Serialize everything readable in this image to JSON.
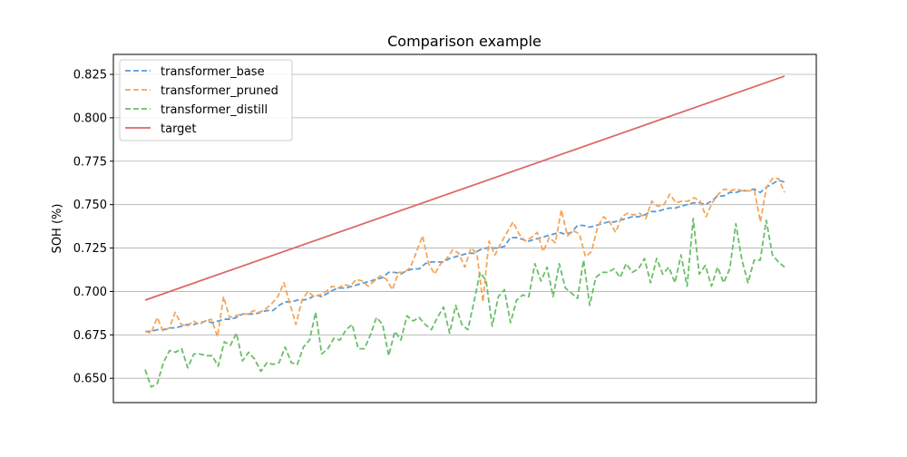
{
  "chart_data": {
    "type": "line",
    "title": "Comparison example",
    "xlabel": "",
    "ylabel": "SOH (%)",
    "ylim": [
      0.636,
      0.8365
    ],
    "y_ticks": [
      0.65,
      0.675,
      0.7,
      0.725,
      0.75,
      0.775,
      0.8,
      0.825
    ],
    "y_tick_labels": [
      "0.650",
      "0.675",
      "0.700",
      "0.725",
      "0.750",
      "0.775",
      "0.800",
      "0.825"
    ],
    "grid": "horizontal",
    "legend_position": "top-left",
    "series": [
      {
        "name": "transformer_base",
        "color": "#5b9bd5",
        "dash": true,
        "values": [
          0.677,
          0.677,
          0.678,
          0.678,
          0.679,
          0.679,
          0.68,
          0.681,
          0.681,
          0.682,
          0.683,
          0.682,
          0.683,
          0.684,
          0.684,
          0.685,
          0.687,
          0.687,
          0.687,
          0.688,
          0.689,
          0.689,
          0.692,
          0.694,
          0.694,
          0.695,
          0.695,
          0.696,
          0.698,
          0.697,
          0.699,
          0.701,
          0.702,
          0.702,
          0.703,
          0.704,
          0.705,
          0.706,
          0.707,
          0.708,
          0.711,
          0.711,
          0.71,
          0.712,
          0.713,
          0.713,
          0.716,
          0.717,
          0.717,
          0.717,
          0.719,
          0.72,
          0.721,
          0.722,
          0.722,
          0.724,
          0.725,
          0.725,
          0.725,
          0.726,
          0.731,
          0.731,
          0.73,
          0.729,
          0.73,
          0.731,
          0.732,
          0.733,
          0.734,
          0.733,
          0.734,
          0.738,
          0.738,
          0.737,
          0.738,
          0.739,
          0.74,
          0.74,
          0.741,
          0.742,
          0.743,
          0.743,
          0.744,
          0.746,
          0.746,
          0.747,
          0.748,
          0.748,
          0.749,
          0.75,
          0.751,
          0.751,
          0.75,
          0.752,
          0.755,
          0.755,
          0.757,
          0.757,
          0.758,
          0.758,
          0.759,
          0.757,
          0.76,
          0.762,
          0.764,
          0.763
        ]
      },
      {
        "name": "transformer_pruned",
        "color": "#f5a55a",
        "dash": true,
        "values": [
          0.677,
          0.676,
          0.685,
          0.677,
          0.679,
          0.688,
          0.681,
          0.68,
          0.683,
          0.681,
          0.683,
          0.684,
          0.674,
          0.697,
          0.685,
          0.686,
          0.687,
          0.687,
          0.689,
          0.688,
          0.69,
          0.693,
          0.697,
          0.705,
          0.693,
          0.681,
          0.695,
          0.7,
          0.697,
          0.698,
          0.7,
          0.703,
          0.702,
          0.704,
          0.703,
          0.707,
          0.706,
          0.703,
          0.706,
          0.709,
          0.707,
          0.701,
          0.711,
          0.711,
          0.714,
          0.723,
          0.732,
          0.716,
          0.71,
          0.716,
          0.719,
          0.724,
          0.722,
          0.714,
          0.725,
          0.722,
          0.694,
          0.729,
          0.721,
          0.728,
          0.734,
          0.74,
          0.733,
          0.729,
          0.731,
          0.734,
          0.723,
          0.731,
          0.728,
          0.747,
          0.732,
          0.735,
          0.733,
          0.72,
          0.723,
          0.737,
          0.743,
          0.74,
          0.734,
          0.743,
          0.745,
          0.744,
          0.745,
          0.742,
          0.752,
          0.749,
          0.75,
          0.756,
          0.751,
          0.752,
          0.752,
          0.754,
          0.752,
          0.743,
          0.751,
          0.756,
          0.759,
          0.758,
          0.759,
          0.758,
          0.758,
          0.758,
          0.74,
          0.76,
          0.765,
          0.765,
          0.757
        ]
      },
      {
        "name": "transformer_distill",
        "color": "#6abf69",
        "dash": true,
        "values": [
          0.655,
          0.645,
          0.647,
          0.659,
          0.666,
          0.665,
          0.667,
          0.656,
          0.664,
          0.664,
          0.663,
          0.663,
          0.657,
          0.671,
          0.669,
          0.676,
          0.66,
          0.665,
          0.661,
          0.654,
          0.659,
          0.658,
          0.659,
          0.668,
          0.659,
          0.658,
          0.668,
          0.672,
          0.688,
          0.664,
          0.667,
          0.673,
          0.672,
          0.678,
          0.681,
          0.667,
          0.667,
          0.675,
          0.685,
          0.681,
          0.663,
          0.677,
          0.672,
          0.686,
          0.683,
          0.685,
          0.681,
          0.678,
          0.685,
          0.691,
          0.676,
          0.692,
          0.681,
          0.678,
          0.694,
          0.711,
          0.706,
          0.68,
          0.697,
          0.701,
          0.682,
          0.695,
          0.698,
          0.697,
          0.716,
          0.706,
          0.714,
          0.697,
          0.716,
          0.702,
          0.699,
          0.696,
          0.718,
          0.692,
          0.708,
          0.711,
          0.711,
          0.713,
          0.708,
          0.716,
          0.711,
          0.713,
          0.719,
          0.705,
          0.719,
          0.71,
          0.714,
          0.705,
          0.721,
          0.703,
          0.742,
          0.71,
          0.715,
          0.703,
          0.714,
          0.705,
          0.713,
          0.739,
          0.718,
          0.705,
          0.718,
          0.718,
          0.741,
          0.721,
          0.717,
          0.714
        ]
      },
      {
        "name": "target",
        "color": "#e06666",
        "dash": false,
        "values": [
          0.695,
          0.824
        ]
      }
    ]
  }
}
